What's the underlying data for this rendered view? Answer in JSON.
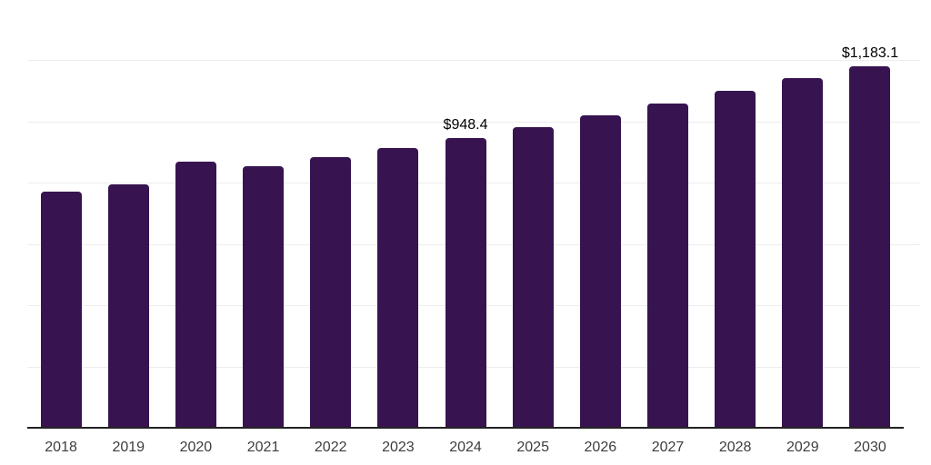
{
  "chart_data": {
    "type": "bar",
    "title": "",
    "xlabel": "",
    "ylabel": "",
    "categories": [
      "2018",
      "2019",
      "2020",
      "2021",
      "2022",
      "2023",
      "2024",
      "2025",
      "2026",
      "2027",
      "2028",
      "2029",
      "2030"
    ],
    "values": [
      774.9,
      798.6,
      872.7,
      856.4,
      887.6,
      917.2,
      948.4,
      984.0,
      1024.0,
      1062.6,
      1104.1,
      1145.6,
      1183.1
    ],
    "value_labels": {
      "2024": "$948.4",
      "2030": "$1,183.1"
    },
    "ylim": [
      0,
      1400
    ],
    "gridline_step": 200,
    "grid": "horizontal-only",
    "legend": "none",
    "colors": {
      "bar": "#371450",
      "gridline": "#ededed",
      "axis_line": "#222222",
      "tick_label": "#3d3d3d",
      "value_label": "#000000",
      "background": "#ffffff"
    }
  }
}
